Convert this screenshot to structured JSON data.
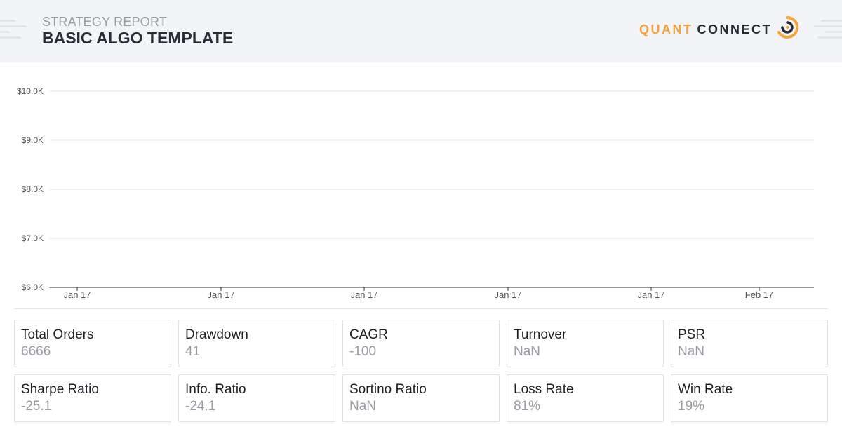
{
  "header": {
    "subtitle": "STRATEGY REPORT",
    "title": "BASIC ALGO TEMPLATE",
    "logo_part1": "QUANT",
    "logo_part2": "CONNECT",
    "accent_color": "#f7a33a",
    "background_color": "#f3f4f7"
  },
  "chart_data": {
    "type": "line",
    "title": "",
    "xlabel": "",
    "ylabel": "",
    "ylim": [
      6000,
      10000
    ],
    "y_ticks": [
      "$10.0K",
      "$9.0K",
      "$8.0K",
      "$7.0K",
      "$6.0K"
    ],
    "y_tick_values": [
      10000,
      9000,
      8000,
      7000,
      6000
    ],
    "x_ticks": [
      "Jan 17",
      "Jan 17",
      "Jan 17",
      "Jan 17",
      "Jan 17",
      "Feb 17"
    ],
    "series": [],
    "grid": true
  },
  "stats": [
    {
      "label": "Total Orders",
      "value": "6666"
    },
    {
      "label": "Drawdown",
      "value": "41"
    },
    {
      "label": "CAGR",
      "value": "-100"
    },
    {
      "label": "Turnover",
      "value": "NaN"
    },
    {
      "label": "PSR",
      "value": "NaN"
    },
    {
      "label": "Sharpe Ratio",
      "value": "-25.1"
    },
    {
      "label": "Info. Ratio",
      "value": "-24.1"
    },
    {
      "label": "Sortino Ratio",
      "value": "NaN"
    },
    {
      "label": "Loss Rate",
      "value": "81%"
    },
    {
      "label": "Win Rate",
      "value": "19%"
    }
  ]
}
